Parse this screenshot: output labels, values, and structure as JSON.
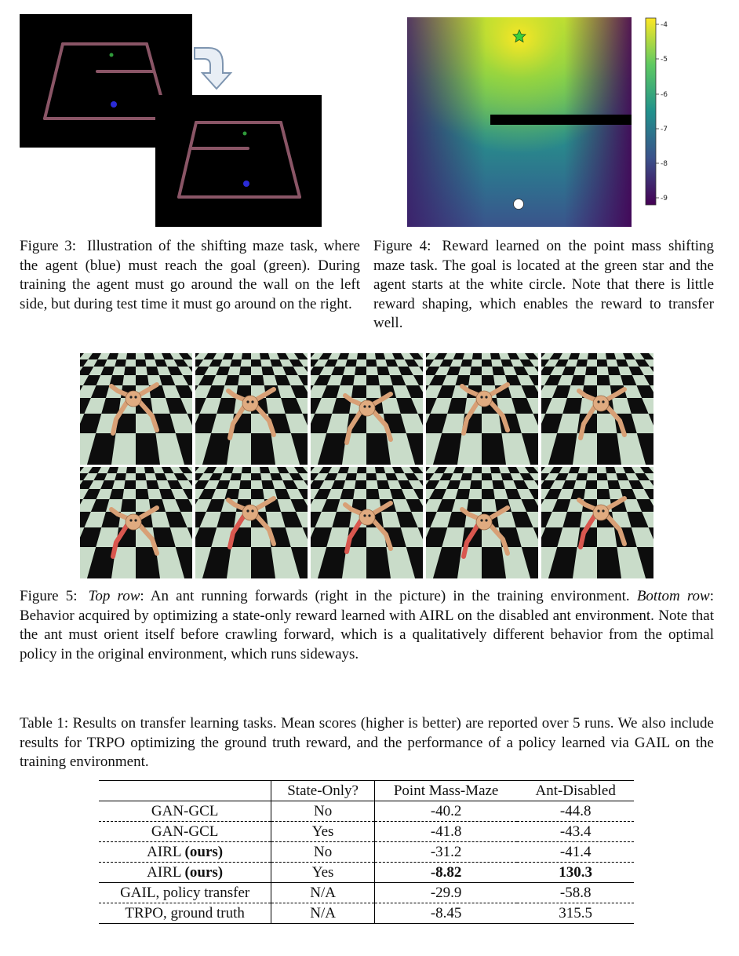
{
  "figure3": {
    "label": "Figure 3:",
    "text": "Illustration of the shifting maze task, where the agent (blue) must reach the goal (green). During training the agent must go around the wall on the left side, but during test time it must go around on the right."
  },
  "figure4": {
    "label": "Figure 4:",
    "text": "Reward learned on the point mass shifting maze task. The goal is located at the green star and the agent starts at the white circle. Note that there is little reward shaping, which enables the reward to transfer well.",
    "colorbar_ticks": [
      "-4",
      "-5",
      "-6",
      "-7",
      "-8",
      "-9"
    ]
  },
  "figure5": {
    "label": "Figure 5:",
    "top_label": "Top row",
    "top_text": ": An ant running forwards (right in the picture) in the training environment.",
    "bottom_label": "Bottom row",
    "bottom_text": ": Behavior acquired by optimizing a state-only reward learned with AIRL on the disabled ant environment. Note that the ant must orient itself before crawling forward, which is a qualitatively different behavior from the optimal policy in the original environment, which runs sideways."
  },
  "table1": {
    "caption": "Table 1: Results on transfer learning tasks. Mean scores (higher is better) are reported over 5 runs. We also include results for TRPO optimizing the ground truth reward, and the performance of a policy learned via GAIL on the training environment.",
    "headers": [
      "",
      "State-Only?",
      "Point Mass-Maze",
      "Ant-Disabled"
    ],
    "rows": [
      {
        "method": "GAN-GCL",
        "method_bold": "",
        "state_only": "No",
        "point_mass": "-40.2",
        "ant": "-44.8"
      },
      {
        "method": "GAN-GCL",
        "method_bold": "",
        "state_only": "Yes",
        "point_mass": "-41.8",
        "ant": "-43.4"
      },
      {
        "method": "AIRL ",
        "method_bold": "(ours)",
        "state_only": "No",
        "point_mass": "-31.2",
        "ant": "-41.4"
      },
      {
        "method": "AIRL ",
        "method_bold": "(ours)",
        "state_only": "Yes",
        "point_mass": "-8.82",
        "ant": "130.3"
      },
      {
        "method": "GAIL, policy transfer",
        "method_bold": "",
        "state_only": "N/A",
        "point_mass": "-29.9",
        "ant": "-58.8"
      },
      {
        "method": "TRPO, ground truth",
        "method_bold": "",
        "state_only": "N/A",
        "point_mass": "-8.45",
        "ant": "315.5"
      }
    ]
  }
}
